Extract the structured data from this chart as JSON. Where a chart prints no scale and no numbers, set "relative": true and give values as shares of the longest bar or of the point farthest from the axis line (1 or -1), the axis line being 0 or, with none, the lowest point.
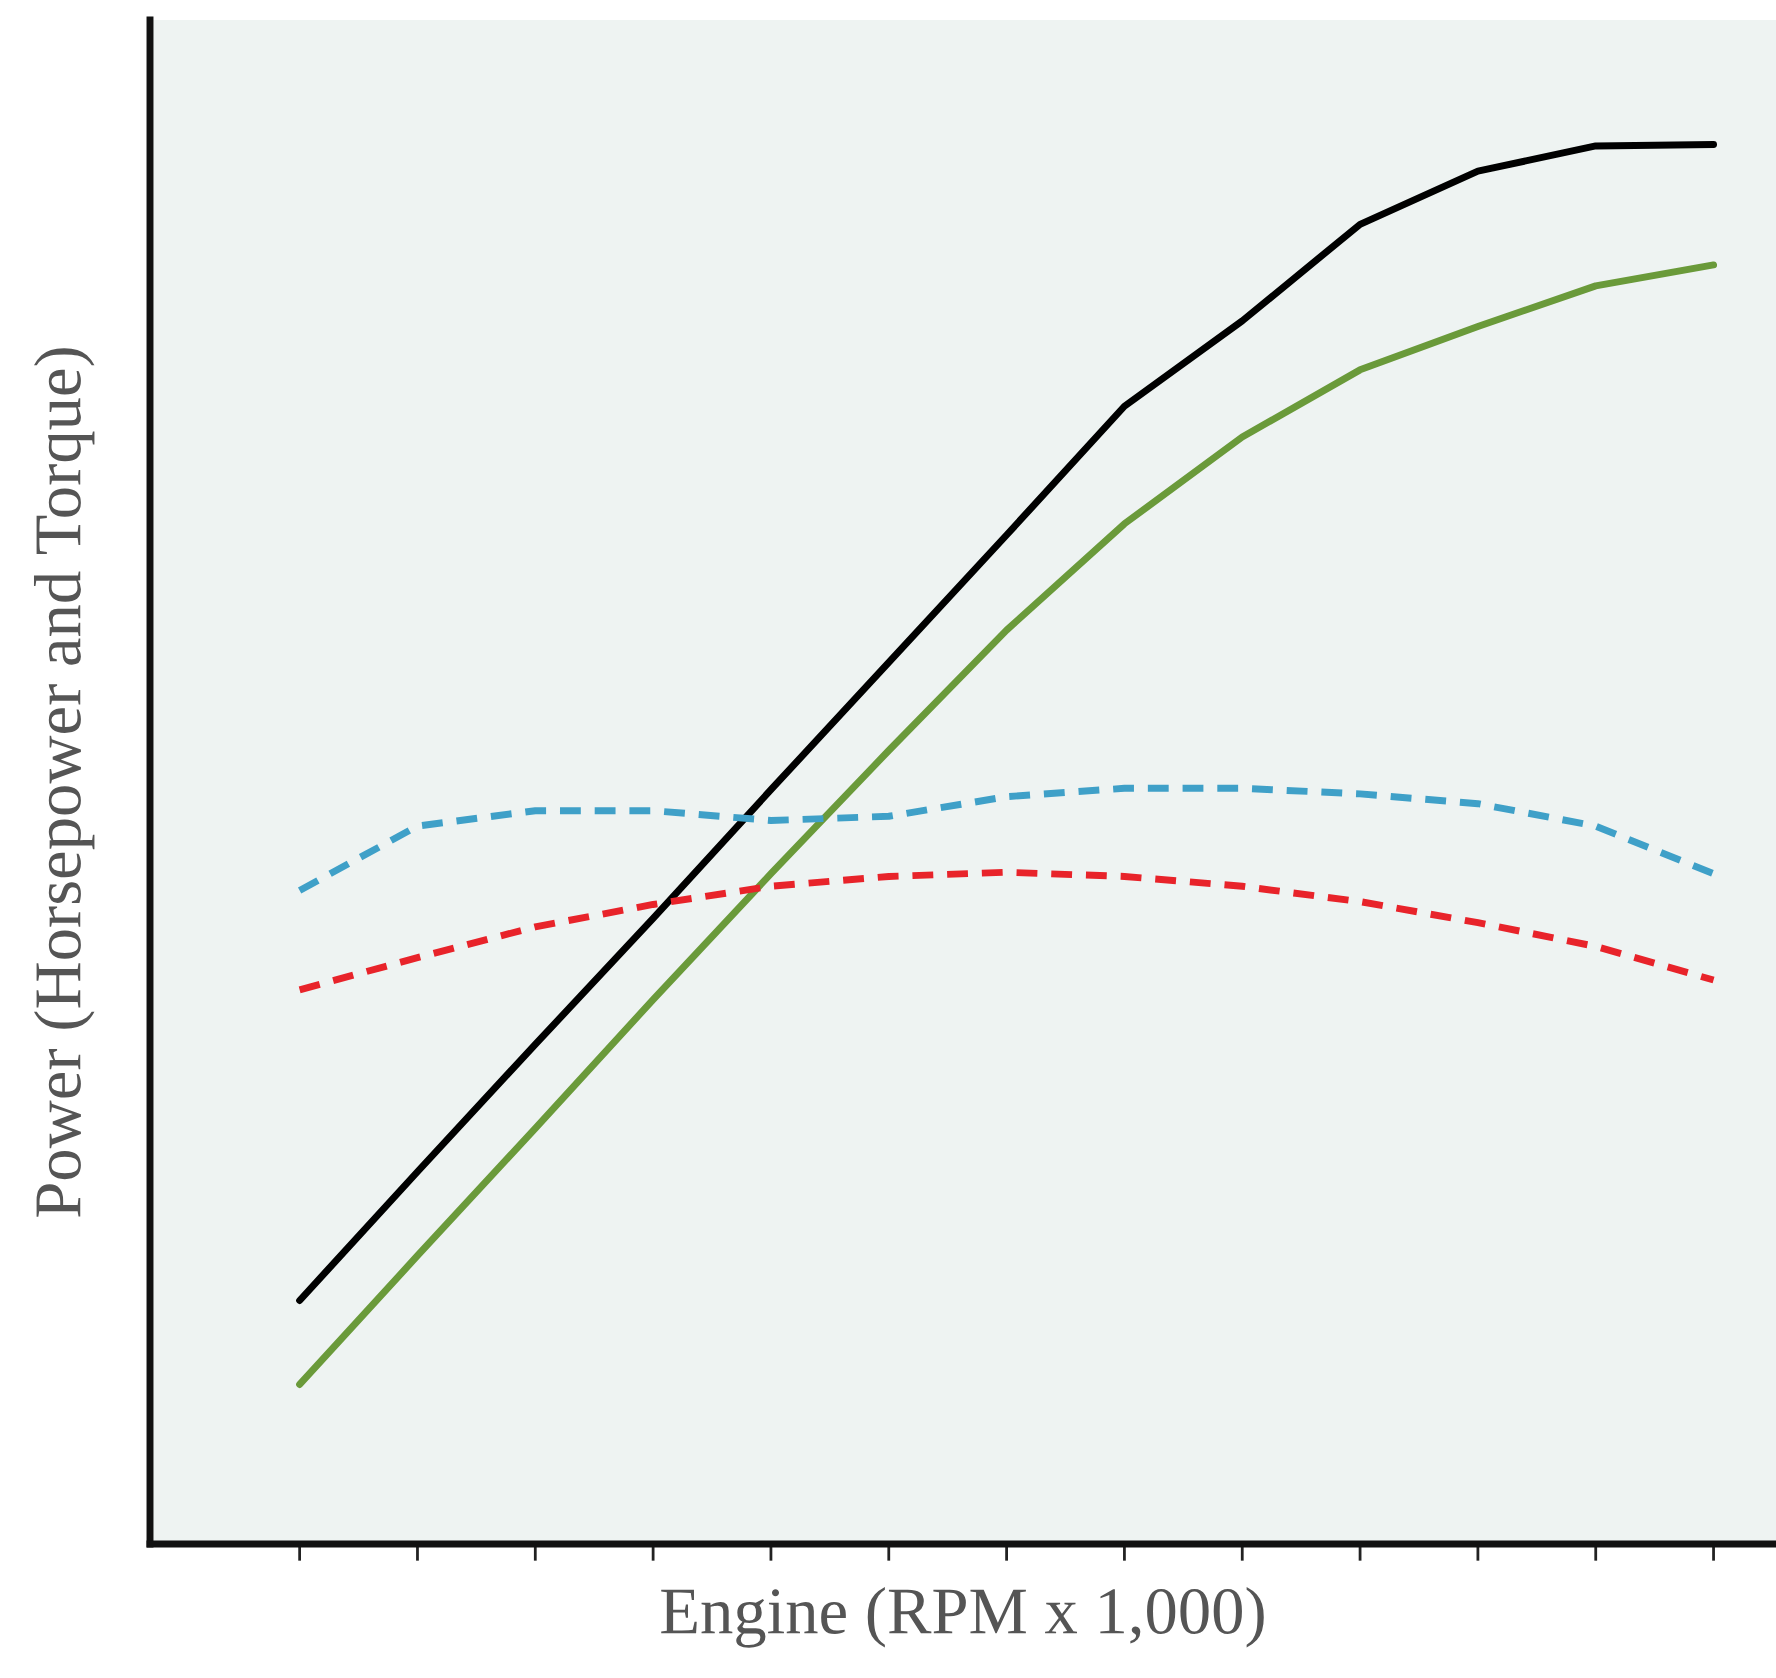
{
  "chart_data": {
    "type": "line",
    "relative": true,
    "xlabel": "Engine (RPM x 1,000)",
    "ylabel": "Power (Horsepower and Torque)",
    "categories": [
      null,
      null,
      null,
      null,
      null,
      null,
      null,
      null,
      null,
      null,
      null,
      null,
      null
    ],
    "series": [
      {
        "color": "#000000",
        "line_style": "solid",
        "values": [
          0.174,
          0.266,
          0.357,
          0.447,
          0.539,
          0.63,
          0.721,
          0.813,
          0.874,
          0.943,
          0.981,
          0.999,
          1
        ]
      },
      {
        "color": "#6a9a3a",
        "line_style": "solid",
        "values": [
          0.114,
          0.206,
          0.297,
          0.389,
          0.479,
          0.567,
          0.653,
          0.729,
          0.791,
          0.839,
          0.87,
          0.899,
          0.914
        ]
      },
      {
        "color": "#3fa0c8",
        "line_style": "dashed",
        "values": [
          0.467,
          0.513,
          0.524,
          0.524,
          0.517,
          0.52,
          0.534,
          0.54,
          0.54,
          0.536,
          0.529,
          0.513,
          0.479
        ]
      },
      {
        "color": "#e8232a",
        "line_style": "dashed",
        "values": [
          0.396,
          0.419,
          0.441,
          0.457,
          0.47,
          0.477,
          0.48,
          0.477,
          0.47,
          0.459,
          0.444,
          0.427,
          0.403
        ]
      }
    ],
    "legend": false,
    "grid": false
  }
}
